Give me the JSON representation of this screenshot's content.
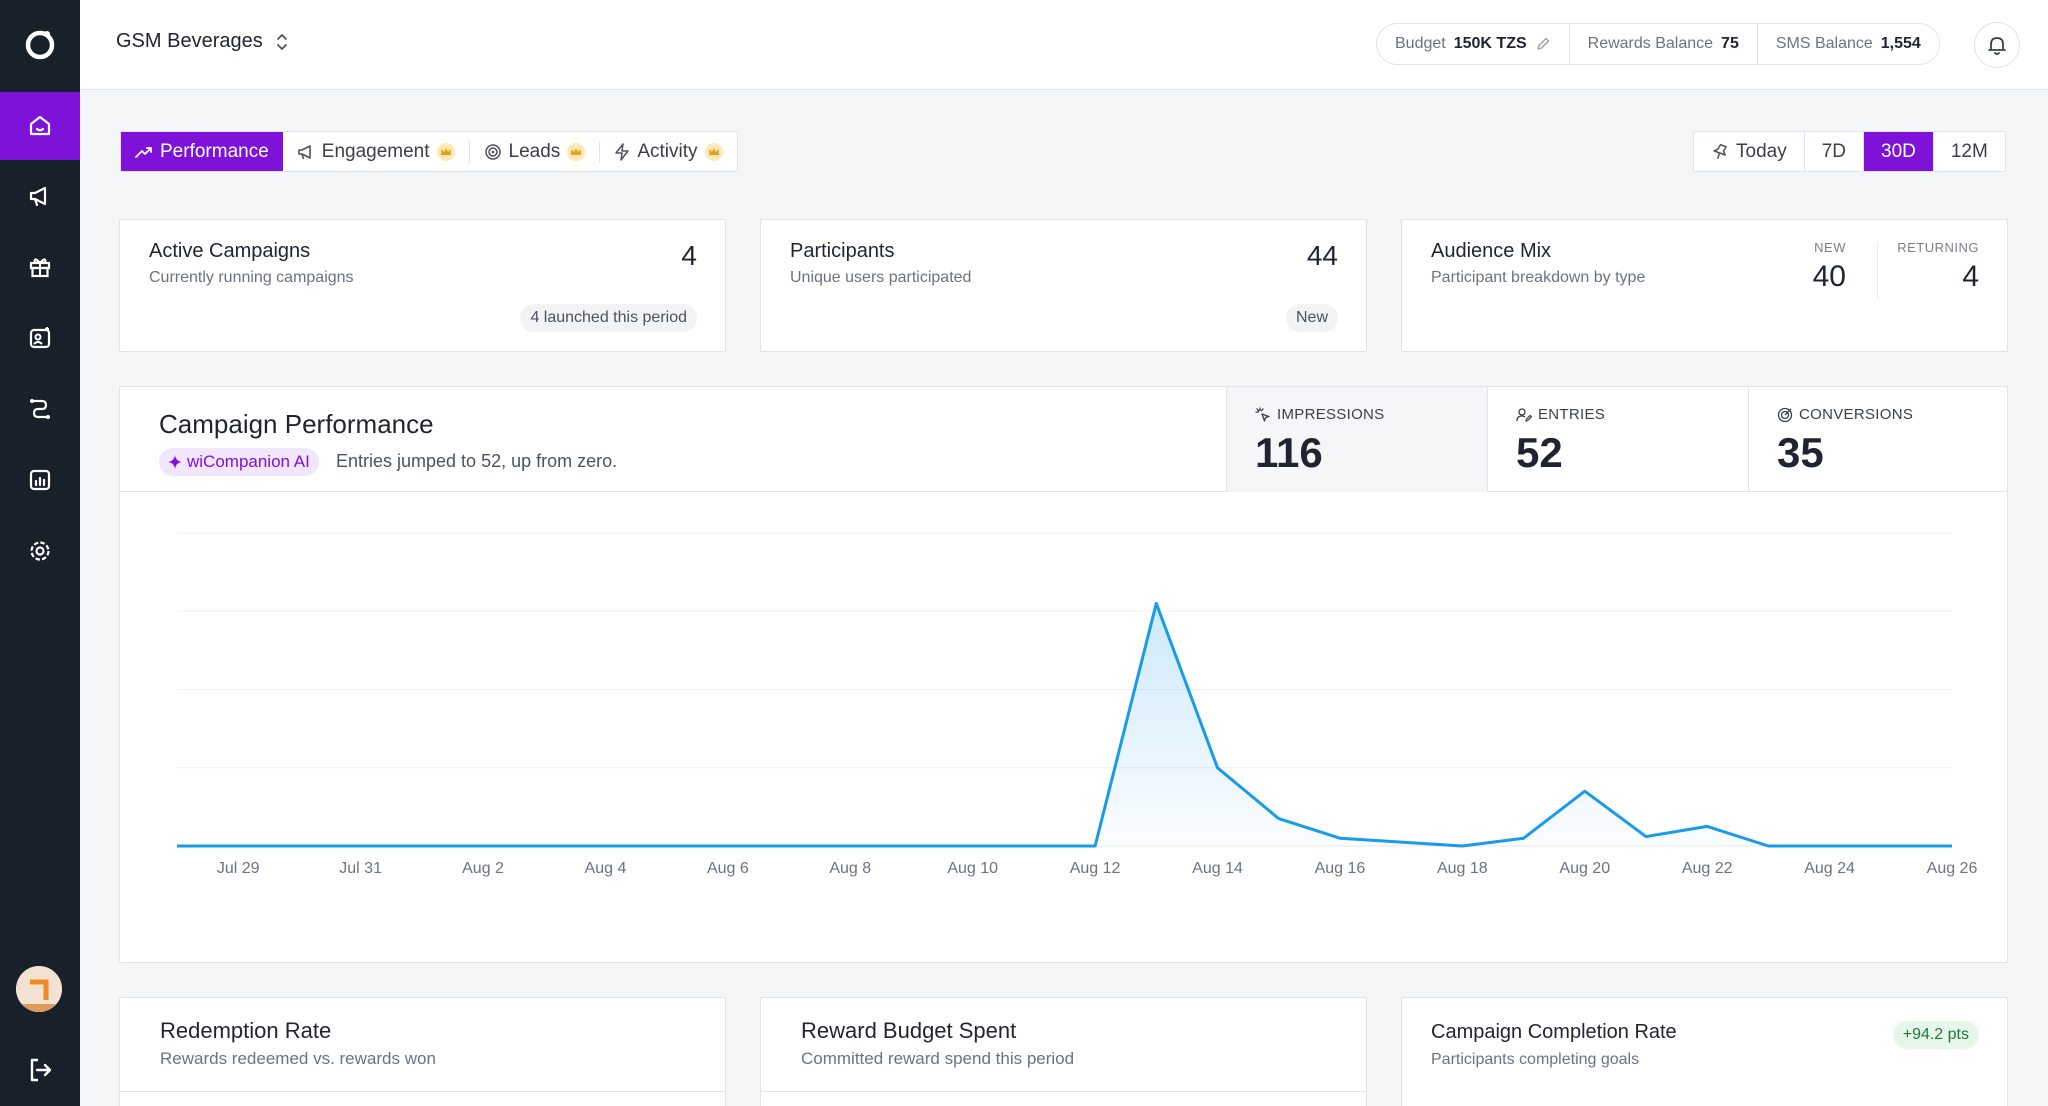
{
  "header": {
    "org_name": "GSM Beverages",
    "budget_label": "Budget",
    "budget_value": "150K TZS",
    "rewards_label": "Rewards Balance",
    "rewards_value": "75",
    "sms_label": "SMS Balance",
    "sms_value": "1,554"
  },
  "tabs": [
    "Performance",
    "Engagement",
    "Leads",
    "Activity"
  ],
  "ranges": [
    "Today",
    "7D",
    "30D",
    "12M"
  ],
  "active_range": "30D",
  "cards": {
    "active_campaigns": {
      "title": "Active Campaigns",
      "subtitle": "Currently running campaigns",
      "value": "4",
      "pill": "4 launched this period"
    },
    "participants": {
      "title": "Participants",
      "subtitle": "Unique users participated",
      "value": "44",
      "pill": "New"
    },
    "audience_mix": {
      "title": "Audience Mix",
      "subtitle": "Participant breakdown by type",
      "new_label": "NEW",
      "new_value": "40",
      "returning_label": "RETURNING",
      "returning_value": "4"
    }
  },
  "performance": {
    "title": "Campaign Performance",
    "ai_badge": "wiCompanion AI",
    "ai_text": "Entries jumped to 52, up from zero.",
    "metrics": [
      {
        "label": "IMPRESSIONS",
        "value": "116"
      },
      {
        "label": "ENTRIES",
        "value": "52"
      },
      {
        "label": "CONVERSIONS",
        "value": "35"
      }
    ]
  },
  "chart_data": {
    "type": "area",
    "x": [
      "Jul 28",
      "Jul 29",
      "Jul 30",
      "Jul 31",
      "Aug 1",
      "Aug 2",
      "Aug 3",
      "Aug 4",
      "Aug 5",
      "Aug 6",
      "Aug 7",
      "Aug 8",
      "Aug 9",
      "Aug 10",
      "Aug 11",
      "Aug 12",
      "Aug 13",
      "Aug 14",
      "Aug 15",
      "Aug 16",
      "Aug 17",
      "Aug 18",
      "Aug 19",
      "Aug 20",
      "Aug 21",
      "Aug 22",
      "Aug 23",
      "Aug 24",
      "Aug 25",
      "Aug 26"
    ],
    "tick_labels": [
      "Jul 29",
      "Jul 31",
      "Aug 2",
      "Aug 4",
      "Aug 6",
      "Aug 8",
      "Aug 10",
      "Aug 12",
      "Aug 14",
      "Aug 16",
      "Aug 18",
      "Aug 20",
      "Aug 22",
      "Aug 24",
      "Aug 26"
    ],
    "series": [
      {
        "values": [
          0,
          0,
          0,
          0,
          0,
          0,
          0,
          0,
          0,
          0,
          0,
          0,
          0,
          0,
          0,
          0,
          31,
          10,
          3.5,
          1,
          0.5,
          0,
          1,
          7,
          1.2,
          2.5,
          0,
          0,
          0,
          0
        ]
      }
    ],
    "ylim": [
      0,
      40
    ],
    "grid": true,
    "color": "#1a9be8"
  },
  "bottom_cards": {
    "redemption": {
      "title": "Redemption Rate",
      "subtitle": "Rewards redeemed vs. rewards won"
    },
    "budget_spent": {
      "title": "Reward Budget Spent",
      "subtitle": "Committed reward spend this period"
    },
    "completion": {
      "title": "Campaign Completion Rate",
      "subtitle": "Participants completing goals",
      "pill": "+94.2 pts"
    }
  },
  "colors": {
    "accent": "#7e12d8",
    "sidebar": "#18202a",
    "line": "#1a9be8"
  }
}
